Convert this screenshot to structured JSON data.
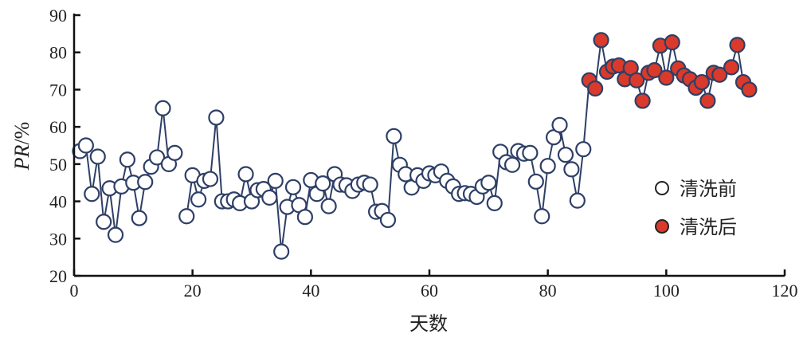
{
  "chart_data": {
    "type": "scatter",
    "xlabel": "天数",
    "ylabel_italic": "PR",
    "ylabel_unit": "/%",
    "xlim": [
      0,
      120
    ],
    "ylim": [
      20,
      90
    ],
    "xticks": [
      0,
      20,
      40,
      60,
      80,
      100,
      120
    ],
    "yticks": [
      20,
      30,
      40,
      50,
      60,
      70,
      80,
      90
    ],
    "grid": false,
    "legend_position": "right",
    "line_color": "#2e3f66",
    "series": [
      {
        "name": "清洗前",
        "fill": "#ffffff",
        "x": [
          1,
          2,
          3,
          4,
          5,
          6,
          7,
          8,
          9,
          10,
          11,
          12,
          13,
          14,
          15,
          16,
          17,
          19,
          20,
          21,
          22,
          23,
          24,
          25,
          26,
          27,
          28,
          29,
          30,
          31,
          32,
          33,
          34,
          35,
          36,
          37,
          38,
          39,
          40,
          41,
          42,
          43,
          44,
          45,
          46,
          47,
          48,
          49,
          50,
          51,
          52,
          53,
          54,
          55,
          56,
          57,
          58,
          59,
          60,
          61,
          62,
          63,
          64,
          65,
          66,
          67,
          68,
          69,
          70,
          71,
          72,
          73,
          74,
          75,
          76,
          77,
          78,
          79,
          80,
          81,
          82,
          83,
          84,
          85,
          86
        ],
        "y": [
          53.5,
          55,
          42,
          52,
          34.5,
          43.5,
          31,
          44,
          51.2,
          45,
          35.5,
          45.2,
          49.3,
          51.8,
          65,
          50,
          53,
          36,
          47,
          40.5,
          45.5,
          46,
          62.5,
          40,
          40,
          40.5,
          39.5,
          47.3,
          40,
          43,
          43.3,
          41,
          45.5,
          26.5,
          38.5,
          43.8,
          39,
          35.8,
          45.7,
          42,
          44.8,
          38.7,
          47.3,
          44.5,
          44.3,
          42.8,
          44.5,
          45,
          44.5,
          37.2,
          37.4,
          35,
          57.5,
          49.8,
          47.3,
          43.7,
          47,
          45.5,
          47.5,
          47,
          48,
          45.5,
          44,
          42,
          42.2,
          42,
          41.2,
          44,
          45,
          39.5,
          53.3,
          50.5,
          49.8,
          53.5,
          52.8,
          53,
          45.3,
          36,
          49.5,
          57.2,
          60.5,
          52.5,
          48.6,
          40.2,
          54
        ]
      },
      {
        "name": "清洗后",
        "fill": "#d93a2b",
        "x": [
          87,
          88,
          89,
          90,
          91,
          92,
          93,
          94,
          95,
          96,
          97,
          98,
          99,
          100,
          101,
          102,
          103,
          104,
          105,
          106,
          107,
          108,
          109,
          111,
          112,
          113,
          114
        ],
        "y": [
          72.5,
          70.3,
          83.3,
          74.8,
          76.2,
          76.5,
          72.8,
          75.8,
          72.5,
          67,
          74.5,
          75.2,
          81.8,
          73.2,
          82.7,
          75.7,
          73.8,
          72.8,
          70.5,
          72,
          67,
          74.5,
          74,
          76,
          82,
          72,
          70
        ]
      }
    ]
  }
}
